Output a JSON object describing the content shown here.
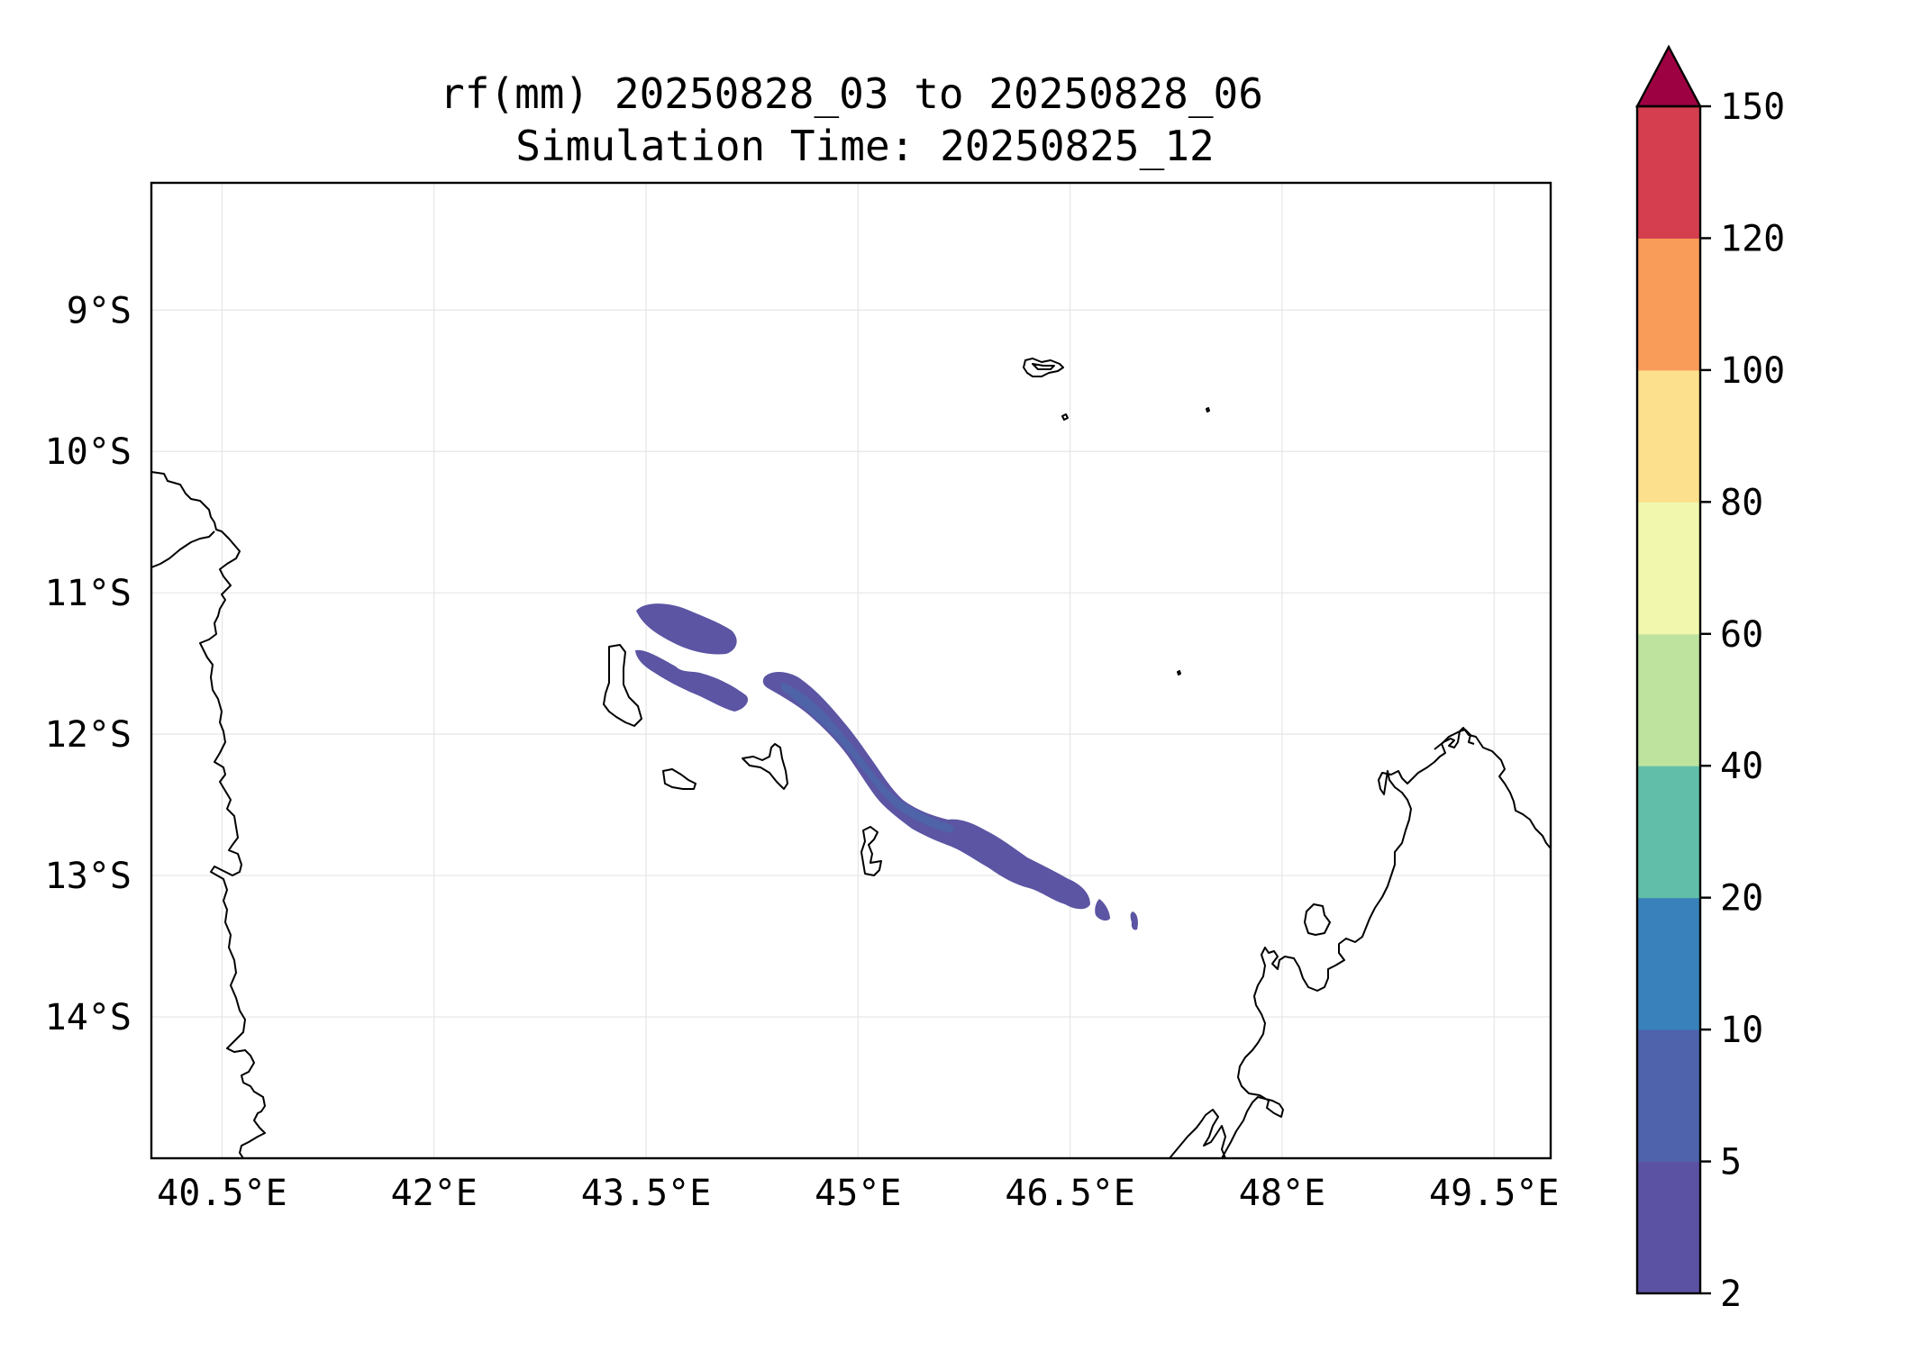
{
  "title_line1": "rf(mm) 20250828_03 to 20250828_06",
  "title_line2": "Simulation Time: 20250825_12",
  "map": {
    "lon_range": [
      40.0,
      49.9
    ],
    "lat_range": [
      -15.0,
      -8.1
    ],
    "lon_ticks": [
      {
        "value": 40.5,
        "label": "40.5°E"
      },
      {
        "value": 42.0,
        "label": "42°E"
      },
      {
        "value": 43.5,
        "label": "43.5°E"
      },
      {
        "value": 45.0,
        "label": "45°E"
      },
      {
        "value": 46.5,
        "label": "46.5°E"
      },
      {
        "value": 48.0,
        "label": "48°E"
      },
      {
        "value": 49.5,
        "label": "49.5°E"
      }
    ],
    "lat_ticks": [
      {
        "value": -9,
        "label": "9°S"
      },
      {
        "value": -10,
        "label": "10°S"
      },
      {
        "value": -11,
        "label": "11°S"
      },
      {
        "value": -12,
        "label": "12°S"
      },
      {
        "value": -13,
        "label": "13°S"
      },
      {
        "value": -14,
        "label": "14°S"
      }
    ],
    "gridlines": true,
    "rain_color": "#5b55a3",
    "rain_dark_color": "#4f63a9"
  },
  "colorbar": {
    "levels": [
      {
        "value": 2,
        "label": "2"
      },
      {
        "value": 5,
        "label": "5"
      },
      {
        "value": 10,
        "label": "10"
      },
      {
        "value": 20,
        "label": "20"
      },
      {
        "value": 40,
        "label": "40"
      },
      {
        "value": 60,
        "label": "60"
      },
      {
        "value": 80,
        "label": "80"
      },
      {
        "value": 100,
        "label": "100"
      },
      {
        "value": 120,
        "label": "120"
      },
      {
        "value": 150,
        "label": "150"
      }
    ],
    "colors": [
      "#5b52a3",
      "#4e63ac",
      "#3881ba",
      "#61bfa9",
      "#bde39f",
      "#f1f8ad",
      "#fde08d",
      "#f99c59",
      "#d53e4f"
    ],
    "extend_color": "#9e0142"
  }
}
